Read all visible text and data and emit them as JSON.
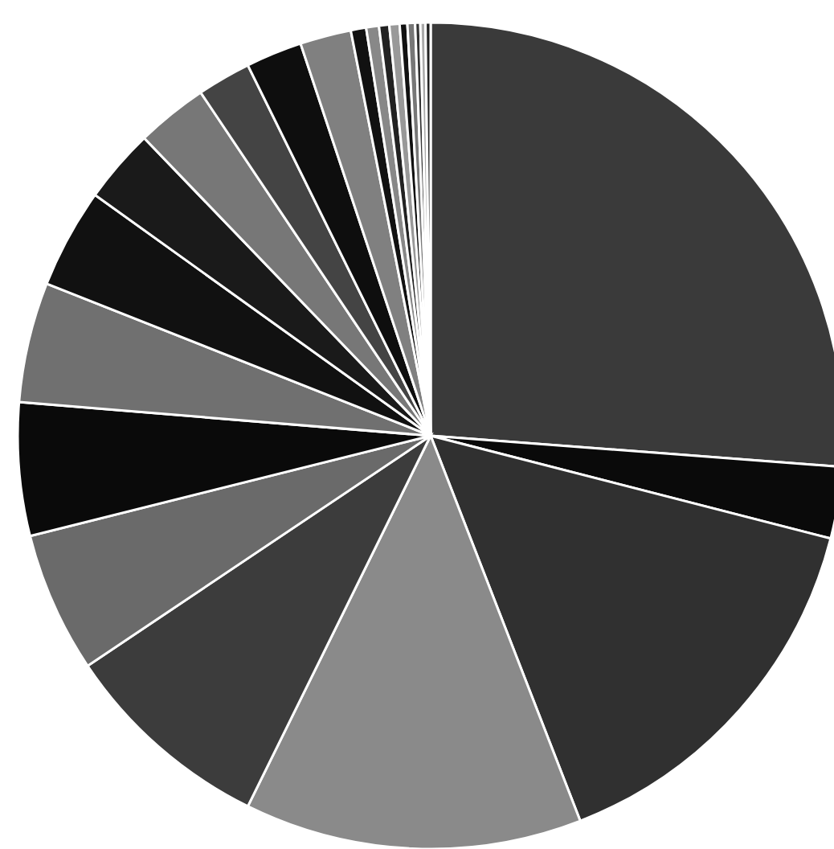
{
  "chart_data": {
    "type": "pie",
    "legend": false,
    "categories": [
      null,
      null,
      null,
      null,
      null,
      null,
      null,
      null,
      null,
      null,
      null,
      null,
      null,
      null,
      null,
      null,
      null,
      null,
      null,
      null,
      null,
      null,
      null
    ],
    "values": [
      26.2,
      2.8,
      15.1,
      13.2,
      8.3,
      5.5,
      5.2,
      4.7,
      3.9,
      2.9,
      2.8,
      2.1,
      2.2,
      2.0,
      0.6,
      0.5,
      0.4,
      0.4,
      0.3,
      0.3,
      0.2,
      0.2,
      0.2
    ],
    "colors": [
      "#3a3a3a",
      "#0a0a0a",
      "#303030",
      "#8a8a8a",
      "#3c3c3c",
      "#6a6a6a",
      "#0a0a0a",
      "#707070",
      "#111111",
      "#1a1a1a",
      "#777777",
      "#444444",
      "#0e0e0e",
      "#808080",
      "#111111",
      "#888888",
      "#222222",
      "#999999",
      "#111111",
      "#777777",
      "#333333",
      "#aaaaaa",
      "#222222"
    ]
  }
}
